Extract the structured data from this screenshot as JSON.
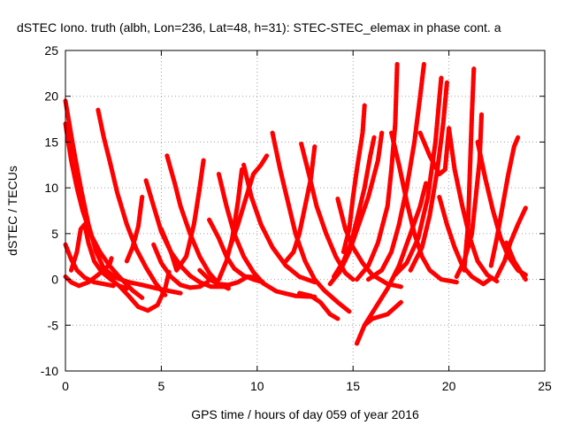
{
  "chart_data": {
    "type": "scatter",
    "title": "dSTEC Iono. truth (albh, Lon=236, Lat=48, h=31): STEC-STEC_elemax in phase cont. a",
    "xlabel": "GPS time / hours of day 059 of year 2016",
    "ylabel": "dSTEC  / TECUs",
    "xlim": [
      0,
      25
    ],
    "ylim": [
      -10,
      25
    ],
    "xticks": [
      "0",
      "5",
      "10",
      "15",
      "20",
      "25"
    ],
    "yticks": [
      "-10",
      "-5",
      "0",
      "5",
      "10",
      "15",
      "20",
      "25"
    ],
    "grid": true,
    "legend": "none",
    "marker": "plus",
    "color": "#ff0000",
    "series": [
      {
        "points": [
          [
            0.0,
            19.5
          ],
          [
            0.4,
            14.5
          ],
          [
            0.8,
            10.0
          ],
          [
            1.2,
            6.0
          ],
          [
            1.6,
            3.0
          ],
          [
            2.0,
            1.2
          ],
          [
            2.6,
            0.2
          ],
          [
            3.3,
            -0.3
          ],
          [
            4.0,
            -0.6
          ],
          [
            4.8,
            -1.0
          ],
          [
            5.5,
            -1.3
          ],
          [
            6.0,
            -1.5
          ]
        ]
      },
      {
        "points": [
          [
            0.0,
            3.8
          ],
          [
            0.3,
            2.2
          ],
          [
            0.6,
            1.0
          ],
          [
            1.0,
            0.2
          ],
          [
            1.5,
            -0.3
          ],
          [
            2.0,
            -0.5
          ],
          [
            2.5,
            -0.7
          ]
        ]
      },
      {
        "points": [
          [
            0.0,
            0.3
          ],
          [
            0.3,
            -0.3
          ],
          [
            0.7,
            -0.7
          ],
          [
            1.2,
            -0.3
          ],
          [
            1.7,
            0.5
          ],
          [
            2.3,
            1.6
          ],
          [
            2.4,
            2.3
          ]
        ]
      },
      {
        "points": [
          [
            0.3,
            1.0
          ],
          [
            0.6,
            3.0
          ],
          [
            0.8,
            5.5
          ],
          [
            1.0,
            6.0
          ],
          [
            1.2,
            4.0
          ],
          [
            1.5,
            2.0
          ],
          [
            1.9,
            0.8
          ],
          [
            2.3,
            0.1
          ],
          [
            2.8,
            -0.7
          ],
          [
            3.2,
            -1.0
          ]
        ]
      },
      {
        "points": [
          [
            0.0,
            17.0
          ],
          [
            0.3,
            13.0
          ],
          [
            0.6,
            10.0
          ],
          [
            0.9,
            7.5
          ],
          [
            1.3,
            5.0
          ],
          [
            1.8,
            3.0
          ],
          [
            2.3,
            1.5
          ],
          [
            2.8,
            0.3
          ],
          [
            3.5,
            -1.2
          ],
          [
            4.0,
            -2.0
          ]
        ]
      },
      {
        "points": [
          [
            1.7,
            18.5
          ],
          [
            2.0,
            15.5
          ],
          [
            2.3,
            13.0
          ],
          [
            2.7,
            9.5
          ],
          [
            3.2,
            6.0
          ],
          [
            3.7,
            3.3
          ],
          [
            4.2,
            1.3
          ],
          [
            4.7,
            -0.4
          ],
          [
            5.2,
            -1.7
          ]
        ]
      },
      {
        "points": [
          [
            2.8,
            -0.7
          ],
          [
            3.3,
            -1.8
          ],
          [
            3.8,
            -3.0
          ],
          [
            4.3,
            -3.4
          ],
          [
            4.8,
            -2.8
          ],
          [
            5.2,
            -1.0
          ],
          [
            5.4,
            0.8
          ]
        ]
      },
      {
        "points": [
          [
            3.2,
            2.0
          ],
          [
            3.5,
            3.5
          ],
          [
            3.8,
            5.8
          ],
          [
            4.0,
            9.0
          ]
        ]
      },
      {
        "points": [
          [
            4.2,
            10.8
          ],
          [
            4.6,
            8.0
          ],
          [
            5.0,
            5.2
          ],
          [
            5.5,
            3.0
          ],
          [
            6.0,
            1.5
          ],
          [
            6.5,
            0.4
          ],
          [
            7.0,
            -0.3
          ],
          [
            7.6,
            -0.8
          ],
          [
            8.5,
            -0.8
          ]
        ]
      },
      {
        "points": [
          [
            4.6,
            3.8
          ],
          [
            5.0,
            1.8
          ],
          [
            5.5,
            0.3
          ],
          [
            6.0,
            -0.6
          ],
          [
            6.5,
            -0.9
          ],
          [
            7.0,
            -0.8
          ],
          [
            7.4,
            -0.3
          ]
        ]
      },
      {
        "points": [
          [
            5.0,
            5.5
          ],
          [
            5.5,
            3.0
          ],
          [
            5.8,
            1.0
          ],
          [
            6.3,
            2.5
          ],
          [
            6.7,
            6.0
          ],
          [
            7.0,
            10.0
          ],
          [
            7.2,
            13.0
          ]
        ]
      },
      {
        "points": [
          [
            5.3,
            13.5
          ],
          [
            5.7,
            10.5
          ],
          [
            6.0,
            8.0
          ],
          [
            6.5,
            5.0
          ],
          [
            7.0,
            2.5
          ],
          [
            7.5,
            0.7
          ],
          [
            8.0,
            -0.5
          ],
          [
            8.5,
            -1.0
          ]
        ]
      },
      {
        "points": [
          [
            7.0,
            1.0
          ],
          [
            7.5,
            0.0
          ],
          [
            8.0,
            -0.5
          ],
          [
            8.5,
            -0.6
          ],
          [
            9.0,
            -0.3
          ],
          [
            9.5,
            0.3
          ],
          [
            10.0,
            0.2
          ]
        ]
      },
      {
        "points": [
          [
            7.5,
            6.5
          ],
          [
            8.0,
            4.5
          ],
          [
            8.4,
            2.5
          ],
          [
            8.8,
            1.2
          ],
          [
            9.3,
            0.4
          ],
          [
            9.8,
            0.0
          ],
          [
            10.3,
            -0.3
          ]
        ]
      },
      {
        "points": [
          [
            8.0,
            0.0
          ],
          [
            8.4,
            2.0
          ],
          [
            8.7,
            4.5
          ],
          [
            9.0,
            8.5
          ],
          [
            9.2,
            12.0
          ]
        ]
      },
      {
        "points": [
          [
            8.0,
            11.5
          ],
          [
            8.4,
            8.0
          ],
          [
            8.8,
            5.0
          ],
          [
            9.3,
            2.5
          ],
          [
            9.8,
            0.8
          ],
          [
            10.3,
            -0.4
          ],
          [
            11.0,
            -1.3
          ],
          [
            12.0,
            -1.8
          ],
          [
            13.0,
            -1.9
          ]
        ]
      },
      {
        "points": [
          [
            9.3,
            12.5
          ],
          [
            9.7,
            9.0
          ],
          [
            10.2,
            6.0
          ],
          [
            10.8,
            3.5
          ],
          [
            11.5,
            1.5
          ],
          [
            12.2,
            0.3
          ],
          [
            13.0,
            -0.3
          ]
        ]
      },
      {
        "points": [
          [
            8.5,
            3.0
          ],
          [
            9.0,
            6.0
          ],
          [
            9.5,
            9.5
          ],
          [
            9.8,
            11.5
          ],
          [
            10.2,
            12.5
          ],
          [
            10.5,
            13.5
          ]
        ]
      },
      {
        "points": [
          [
            10.8,
            16.0
          ],
          [
            11.2,
            12.0
          ],
          [
            11.6,
            8.5
          ],
          [
            12.0,
            5.0
          ],
          [
            12.5,
            2.0
          ],
          [
            13.0,
            0.0
          ],
          [
            13.5,
            -1.2
          ],
          [
            14.2,
            -2.5
          ],
          [
            14.8,
            -3.5
          ]
        ]
      },
      {
        "points": [
          [
            11.5,
            2.0
          ],
          [
            11.9,
            3.0
          ],
          [
            12.2,
            5.0
          ],
          [
            12.5,
            8.0
          ],
          [
            12.8,
            11.0
          ],
          [
            13.0,
            14.5
          ]
        ]
      },
      {
        "points": [
          [
            12.2,
            -1.5
          ],
          [
            12.8,
            -1.8
          ],
          [
            13.3,
            -2.5
          ],
          [
            13.8,
            -3.8
          ],
          [
            14.2,
            -4.3
          ]
        ]
      },
      {
        "points": [
          [
            12.3,
            14.8
          ],
          [
            12.7,
            11.5
          ],
          [
            13.1,
            8.0
          ],
          [
            13.6,
            5.0
          ],
          [
            14.1,
            2.5
          ],
          [
            14.6,
            0.7
          ],
          [
            15.0,
            0.0
          ]
        ]
      },
      {
        "points": [
          [
            14.2,
            8.8
          ],
          [
            14.6,
            5.5
          ],
          [
            15.0,
            3.5
          ],
          [
            15.5,
            1.8
          ],
          [
            16.0,
            0.5
          ],
          [
            16.8,
            -0.5
          ],
          [
            17.5,
            -0.8
          ]
        ]
      },
      {
        "points": [
          [
            14.5,
            3.0
          ],
          [
            14.8,
            5.5
          ],
          [
            15.0,
            9.0
          ],
          [
            15.2,
            12.0
          ],
          [
            15.5,
            16.0
          ],
          [
            15.6,
            19.0
          ]
        ]
      },
      {
        "points": [
          [
            14.0,
            0.3
          ],
          [
            14.5,
            2.0
          ],
          [
            14.9,
            4.0
          ],
          [
            15.2,
            6.5
          ],
          [
            15.6,
            10.0
          ],
          [
            15.9,
            13.5
          ],
          [
            16.1,
            15.5
          ]
        ]
      },
      {
        "points": [
          [
            13.8,
            -0.5
          ],
          [
            14.3,
            0.8
          ],
          [
            14.8,
            3.0
          ],
          [
            15.3,
            6.0
          ],
          [
            15.8,
            9.0
          ],
          [
            16.3,
            13.0
          ],
          [
            16.5,
            16.0
          ]
        ]
      },
      {
        "points": [
          [
            15.2,
            -7.0
          ],
          [
            15.6,
            -5.0
          ],
          [
            16.2,
            -3.0
          ],
          [
            16.8,
            -1.0
          ],
          [
            17.4,
            1.5
          ],
          [
            18.0,
            5.0
          ],
          [
            18.5,
            8.0
          ],
          [
            18.8,
            10.5
          ]
        ]
      },
      {
        "points": [
          [
            15.6,
            -5.0
          ],
          [
            16.0,
            -4.3
          ],
          [
            16.8,
            -3.8
          ],
          [
            17.5,
            -2.5
          ]
        ]
      },
      {
        "points": [
          [
            15.2,
            0.0
          ],
          [
            15.8,
            1.5
          ],
          [
            16.3,
            4.0
          ],
          [
            16.8,
            8.0
          ],
          [
            17.0,
            12.0
          ],
          [
            17.2,
            17.0
          ],
          [
            17.3,
            23.5
          ]
        ]
      },
      {
        "points": [
          [
            15.8,
            0.0
          ],
          [
            16.5,
            1.0
          ],
          [
            17.0,
            3.0
          ],
          [
            17.4,
            6.0
          ],
          [
            17.8,
            10.0
          ],
          [
            18.2,
            15.0
          ],
          [
            18.5,
            20.0
          ],
          [
            18.7,
            23.5
          ]
        ]
      },
      {
        "points": [
          [
            17.0,
            16.0
          ],
          [
            17.4,
            12.5
          ],
          [
            17.8,
            8.5
          ],
          [
            18.2,
            5.0
          ],
          [
            18.6,
            2.5
          ],
          [
            19.0,
            1.0
          ],
          [
            19.6,
            0.0
          ],
          [
            20.4,
            -0.3
          ]
        ]
      },
      {
        "points": [
          [
            17.2,
            0.5
          ],
          [
            17.8,
            1.8
          ],
          [
            18.4,
            4.5
          ],
          [
            18.9,
            9.0
          ],
          [
            19.3,
            15.0
          ],
          [
            19.6,
            22.0
          ]
        ]
      },
      {
        "points": [
          [
            18.0,
            1.0
          ],
          [
            18.6,
            3.5
          ],
          [
            19.0,
            7.0
          ],
          [
            19.4,
            12.0
          ],
          [
            19.7,
            17.0
          ],
          [
            19.9,
            21.5
          ]
        ]
      },
      {
        "points": [
          [
            18.5,
            16.0
          ],
          [
            19.0,
            13.5
          ],
          [
            19.5,
            11.5
          ],
          [
            19.8,
            12.0
          ],
          [
            20.0,
            16.5
          ]
        ]
      },
      {
        "points": [
          [
            19.5,
            9.0
          ],
          [
            19.9,
            6.0
          ],
          [
            20.3,
            3.5
          ],
          [
            20.7,
            1.5
          ],
          [
            21.2,
            0.3
          ],
          [
            21.8,
            -0.5
          ],
          [
            22.2,
            0.1
          ]
        ]
      },
      {
        "points": [
          [
            20.0,
            16.5
          ],
          [
            20.3,
            12.0
          ],
          [
            20.7,
            8.0
          ],
          [
            21.1,
            4.5
          ],
          [
            21.5,
            2.0
          ],
          [
            22.0,
            0.5
          ],
          [
            22.5,
            -0.2
          ]
        ]
      },
      {
        "points": [
          [
            20.4,
            0.3
          ],
          [
            20.8,
            2.0
          ],
          [
            21.2,
            5.0
          ],
          [
            21.4,
            9.0
          ],
          [
            21.6,
            13.0
          ],
          [
            21.7,
            18.0
          ]
        ]
      },
      {
        "points": [
          [
            20.8,
            1.0
          ],
          [
            21.0,
            6.0
          ],
          [
            21.1,
            12.0
          ],
          [
            21.2,
            18.0
          ],
          [
            21.3,
            23.0
          ]
        ]
      },
      {
        "points": [
          [
            21.5,
            15.0
          ],
          [
            21.9,
            11.0
          ],
          [
            22.3,
            7.5
          ],
          [
            22.7,
            4.5
          ],
          [
            23.1,
            2.5
          ],
          [
            23.6,
            1.0
          ],
          [
            24.0,
            0.5
          ]
        ]
      },
      {
        "points": [
          [
            22.2,
            1.5
          ],
          [
            22.5,
            4.5
          ],
          [
            22.8,
            8.0
          ],
          [
            23.1,
            11.5
          ],
          [
            23.4,
            14.5
          ],
          [
            23.6,
            15.5
          ]
        ]
      },
      {
        "points": [
          [
            22.5,
            0.3
          ],
          [
            22.9,
            2.0
          ],
          [
            23.2,
            4.0
          ],
          [
            23.6,
            6.0
          ],
          [
            24.0,
            7.8
          ]
        ]
      },
      {
        "points": [
          [
            23.0,
            4.0
          ],
          [
            23.4,
            2.0
          ],
          [
            23.7,
            1.0
          ],
          [
            24.0,
            0.0
          ]
        ]
      }
    ]
  }
}
